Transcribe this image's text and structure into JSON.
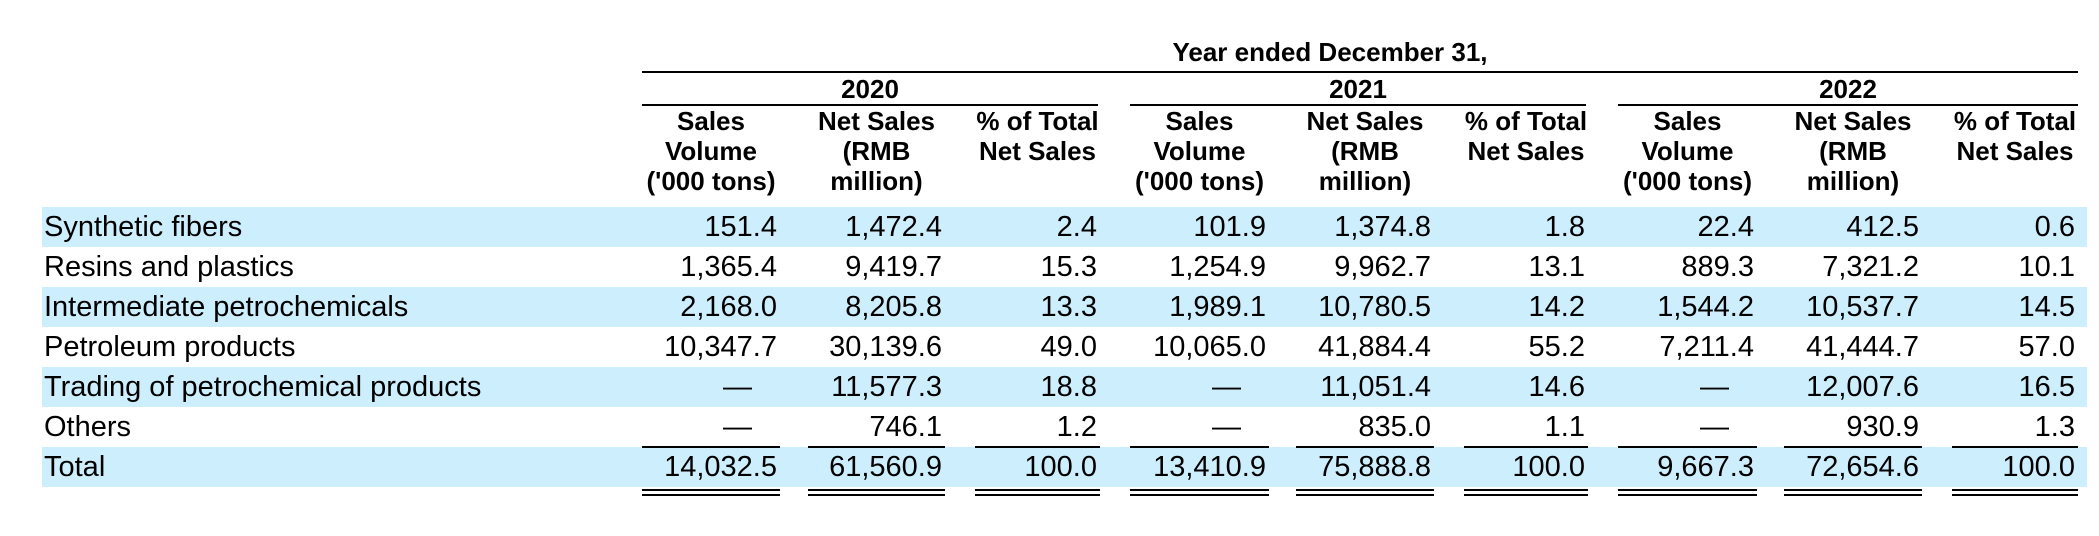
{
  "table": {
    "super_header": "Year ended December 31,",
    "years": [
      "2020",
      "2021",
      "2022"
    ],
    "column_headers": [
      "Sales Volume ('000 tons)",
      "Net Sales (RMB million)",
      "% of Total Net Sales"
    ],
    "rows": [
      {
        "label": "Synthetic fibers",
        "values": [
          "151.4",
          "1,472.4",
          "2.4",
          "101.9",
          "1,374.8",
          "1.8",
          "22.4",
          "412.5",
          "0.6"
        ]
      },
      {
        "label": "Resins and plastics",
        "values": [
          "1,365.4",
          "9,419.7",
          "15.3",
          "1,254.9",
          "9,962.7",
          "13.1",
          "889.3",
          "7,321.2",
          "10.1"
        ]
      },
      {
        "label": "Intermediate petrochemicals",
        "values": [
          "2,168.0",
          "8,205.8",
          "13.3",
          "1,989.1",
          "10,780.5",
          "14.2",
          "1,544.2",
          "10,537.7",
          "14.5"
        ]
      },
      {
        "label": "Petroleum products",
        "values": [
          "10,347.7",
          "30,139.6",
          "49.0",
          "10,065.0",
          "41,884.4",
          "55.2",
          "7,211.4",
          "41,444.7",
          "57.0"
        ]
      },
      {
        "label": "Trading of petrochemical products",
        "values": [
          "—",
          "11,577.3",
          "18.8",
          "—",
          "11,051.4",
          "14.6",
          "—",
          "12,007.6",
          "16.5"
        ]
      },
      {
        "label": "Others",
        "values": [
          "—",
          "746.1",
          "1.2",
          "—",
          "835.0",
          "1.1",
          "—",
          "930.9",
          "1.3"
        ]
      },
      {
        "label": "Total",
        "values": [
          "14,032.5",
          "61,560.9",
          "100.0",
          "13,410.9",
          "75,888.8",
          "100.0",
          "9,667.3",
          "72,654.6",
          "100.0"
        ]
      }
    ],
    "band_color": "#cdeefc"
  }
}
